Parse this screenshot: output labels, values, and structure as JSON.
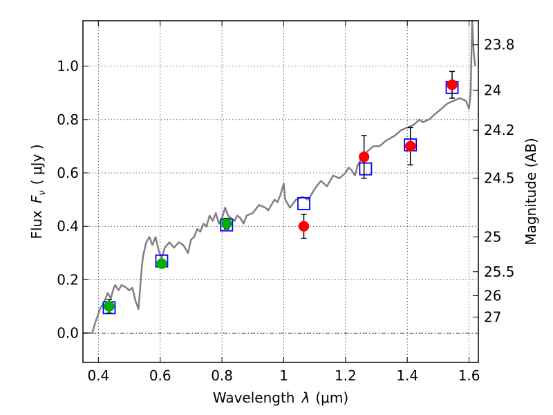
{
  "chart_data": {
    "type": "scatter",
    "xlabel_prefix": "Wavelength",
    "xlabel_symbol": "λ",
    "xlabel_unit": "(μm)",
    "ylabel_prefix": "Flux",
    "ylabel_symbol": "F",
    "ylabel_subscript": "ν",
    "ylabel_unit": "( μJy )",
    "y2label": "Magnitude (AB)",
    "xlim": [
      0.35,
      1.63
    ],
    "ylim": [
      -0.11,
      1.17
    ],
    "xticks": [
      "0.4",
      "0.6",
      "0.8",
      "1",
      "1.2",
      "1.4",
      "1.6"
    ],
    "xtick_values": [
      0.4,
      0.6,
      0.8,
      1.0,
      1.2,
      1.4,
      1.6
    ],
    "yticks": [
      "0.0",
      "0.2",
      "0.4",
      "0.6",
      "0.8",
      "1.0"
    ],
    "ytick_values": [
      0.0,
      0.2,
      0.4,
      0.6,
      0.8,
      1.0
    ],
    "y2ticks": [
      "23.8",
      "24",
      "24.2",
      "24.5",
      "25",
      "25.5",
      "26",
      "27"
    ],
    "y2tick_flux": [
      1.08,
      0.91,
      0.76,
      0.58,
      0.36,
      0.23,
      0.14,
      0.06
    ],
    "grid": true,
    "series": [
      {
        "kind": "line",
        "color": "#808080",
        "x": [
          0.35,
          0.38,
          0.39,
          0.405,
          0.42,
          0.43,
          0.44,
          0.45,
          0.455,
          0.465,
          0.475,
          0.49,
          0.5,
          0.51,
          0.52,
          0.53,
          0.54,
          0.545,
          0.555,
          0.565,
          0.575,
          0.585,
          0.595,
          0.605,
          0.615,
          0.63,
          0.645,
          0.66,
          0.675,
          0.69,
          0.7,
          0.71,
          0.72,
          0.73,
          0.74,
          0.75,
          0.76,
          0.77,
          0.78,
          0.79,
          0.8,
          0.81,
          0.82,
          0.83,
          0.84,
          0.85,
          0.86,
          0.87,
          0.88,
          0.9,
          0.92,
          0.94,
          0.95,
          0.96,
          0.97,
          0.98,
          0.99,
          1.0,
          1.005,
          1.01,
          1.02,
          1.04,
          1.06,
          1.08,
          1.1,
          1.12,
          1.14,
          1.16,
          1.18,
          1.2,
          1.21,
          1.22,
          1.23,
          1.24,
          1.25,
          1.27,
          1.29,
          1.31,
          1.33,
          1.36,
          1.38,
          1.4,
          1.42,
          1.44,
          1.45,
          1.47,
          1.49,
          1.51,
          1.53,
          1.55,
          1.57,
          1.59,
          1.6,
          1.605,
          1.61,
          1.615,
          1.62
        ],
        "y": [
          0.0,
          0.0,
          0.04,
          0.09,
          0.12,
          0.15,
          0.13,
          0.17,
          0.18,
          0.16,
          0.18,
          0.17,
          0.16,
          0.17,
          0.12,
          0.09,
          0.24,
          0.29,
          0.34,
          0.36,
          0.33,
          0.36,
          0.31,
          0.28,
          0.32,
          0.34,
          0.32,
          0.34,
          0.33,
          0.3,
          0.35,
          0.36,
          0.39,
          0.38,
          0.41,
          0.4,
          0.44,
          0.42,
          0.45,
          0.41,
          0.43,
          0.47,
          0.44,
          0.43,
          0.42,
          0.44,
          0.43,
          0.41,
          0.44,
          0.45,
          0.48,
          0.47,
          0.46,
          0.48,
          0.5,
          0.49,
          0.52,
          0.56,
          0.5,
          0.49,
          0.47,
          0.5,
          0.51,
          0.5,
          0.54,
          0.57,
          0.55,
          0.59,
          0.58,
          0.6,
          0.62,
          0.61,
          0.59,
          0.63,
          0.65,
          0.68,
          0.7,
          0.7,
          0.72,
          0.74,
          0.76,
          0.77,
          0.78,
          0.8,
          0.79,
          0.8,
          0.82,
          0.84,
          0.86,
          0.87,
          0.88,
          0.87,
          0.84,
          0.9,
          1.17,
          1.05,
          1.0
        ]
      },
      {
        "kind": "points",
        "marker": "square",
        "color": "#0000ff",
        "x": [
          0.435,
          0.605,
          0.815,
          1.065,
          1.265,
          1.41,
          1.545
        ],
        "y": [
          0.095,
          0.27,
          0.405,
          0.485,
          0.615,
          0.705,
          0.92
        ]
      },
      {
        "kind": "points",
        "marker": "circle",
        "color": "#00b000",
        "x": [
          0.435,
          0.605,
          0.815
        ],
        "y": [
          0.1,
          0.26,
          0.41
        ],
        "err": [
          0.025,
          0.015,
          0.02
        ]
      },
      {
        "kind": "points",
        "marker": "circle",
        "color": "#ff0000",
        "x": [
          1.065,
          1.26,
          1.41,
          1.545
        ],
        "y": [
          0.4,
          0.66,
          0.7,
          0.93
        ],
        "err": [
          0.045,
          0.08,
          0.07,
          0.05
        ]
      }
    ]
  }
}
